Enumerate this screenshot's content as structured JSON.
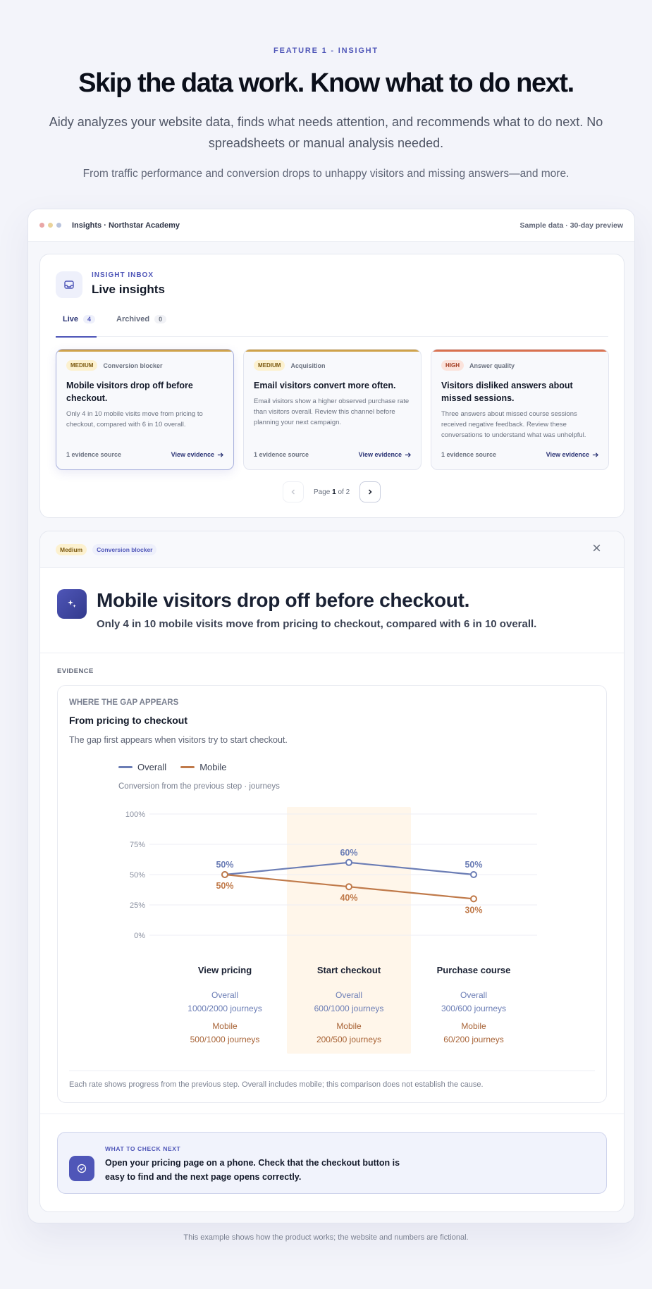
{
  "hero": {
    "eyebrow": "FEATURE 1 - INSIGHT",
    "headline": "Skip the data work. Know what to do next.",
    "lead": "Aidy analyzes your website data, finds what needs attention, and recommends what to do next. No spreadsheets or manual analysis needed.",
    "sublead": "From traffic performance and conversion drops to unhappy visitors and missing answers—and more."
  },
  "window": {
    "title": "Insights · Northstar Academy",
    "meta": "Sample data · 30-day preview",
    "dot_colors": [
      "#e9a6a6",
      "#ead39a",
      "#b8c3dd"
    ]
  },
  "inbox": {
    "eyebrow": "INSIGHT INBOX",
    "title": "Live insights",
    "tabs": [
      {
        "label": "Live",
        "count": "4"
      },
      {
        "label": "Archived",
        "count": "0"
      }
    ],
    "cards": [
      {
        "priority": "MEDIUM",
        "category": "Conversion blocker",
        "title": "Mobile visitors drop off before checkout.",
        "description": "Only 4 in 10 mobile visits move from pricing to checkout, compared with 6 in 10 overall.",
        "source": "1 evidence source",
        "link": "View evidence"
      },
      {
        "priority": "MEDIUM",
        "category": "Acquisition",
        "title": "Email visitors convert more often.",
        "description": "Email visitors show a higher observed purchase rate than visitors overall. Review this channel before planning your next campaign.",
        "source": "1 evidence source",
        "link": "View evidence"
      },
      {
        "priority": "HIGH",
        "category": "Answer quality",
        "title": "Visitors disliked answers about missed sessions.",
        "description": "Three answers about missed course sessions received negative feedback. Review these conversations to understand what was unhelpful.",
        "source": "1 evidence source",
        "link": "View evidence"
      }
    ],
    "pager": {
      "prefix": "Page",
      "current": "1",
      "suffix": "of 2"
    }
  },
  "detail": {
    "tags": [
      "Medium",
      "Conversion blocker"
    ],
    "title": "Mobile visitors drop off before checkout.",
    "subtitle": "Only 4 in 10 mobile visits move from pricing to checkout, compared with 6 in 10 overall.",
    "evidence_label": "EVIDENCE",
    "evidence": {
      "eyebrow": "WHERE THE GAP APPEARS",
      "title": "From pricing to checkout",
      "description": "The gap first appears when visitors try to start checkout.",
      "legend": [
        "Overall",
        "Mobile"
      ],
      "caption": "Conversion from the previous step · journeys",
      "footnote": "Each rate shows progress from the previous step. Overall includes mobile; this comparison does not establish the cause."
    },
    "next": {
      "eyebrow": "WHAT TO CHECK NEXT",
      "text": "Open your pricing page on a phone. Check that the checkout button is easy to find and the next page opens correctly."
    }
  },
  "chart_data": {
    "type": "line",
    "categories": [
      "View pricing",
      "Start checkout",
      "Purchase course"
    ],
    "yticks": [
      "100%",
      "75%",
      "50%",
      "25%",
      "0%"
    ],
    "ylim": [
      0,
      100
    ],
    "highlight_category": "Start checkout",
    "series": [
      {
        "name": "Overall",
        "color": "#6b7db5",
        "values": [
          50,
          60,
          50
        ],
        "labels": [
          "50%",
          "60%",
          "50%"
        ],
        "detail_name": "Overall",
        "journeys": [
          "1000/2000 journeys",
          "600/1000 journeys",
          "300/600 journeys"
        ]
      },
      {
        "name": "Mobile",
        "color": "#c07a4a",
        "values": [
          50,
          40,
          30
        ],
        "labels": [
          "50%",
          "40%",
          "30%"
        ],
        "detail_name": "Mobile",
        "journeys": [
          "500/1000 journeys",
          "200/500 journeys",
          "60/200 journeys"
        ]
      }
    ]
  },
  "footnote": "This example shows how the product works; the website and numbers are fictional.",
  "colors": {
    "accent": "#4f56b8",
    "medium_bg": "#fcf1cf",
    "medium_text": "#7c5a10",
    "high_bg": "#fbe3dc",
    "high_text": "#a23b21",
    "strip_medium": "#cfa24a",
    "strip_high": "#d9714f"
  }
}
